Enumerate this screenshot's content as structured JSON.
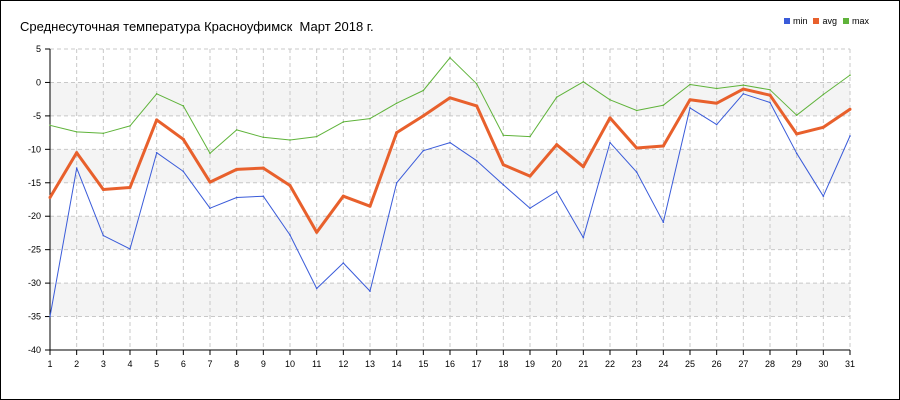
{
  "chart_data": {
    "type": "line",
    "title": "Среднесуточная температура Красноуфимск  Март 2018 г.",
    "xlabel": "",
    "ylabel": "",
    "x": [
      1,
      2,
      3,
      4,
      5,
      6,
      7,
      8,
      9,
      10,
      11,
      12,
      13,
      14,
      15,
      16,
      17,
      18,
      19,
      20,
      21,
      22,
      23,
      24,
      25,
      26,
      27,
      28,
      29,
      30,
      31
    ],
    "ylim": [
      -40,
      5
    ],
    "yticks": [
      5,
      0,
      -5,
      -10,
      -15,
      -20,
      -25,
      -30,
      -35,
      -40
    ],
    "grid": true,
    "legend_position": "top-right",
    "series": [
      {
        "name": "min",
        "color": "#3a5bd9",
        "values": [
          -35,
          -12.8,
          -22.9,
          -24.9,
          -10.5,
          -13.3,
          -18.8,
          -17.2,
          -17,
          -22.8,
          -30.8,
          -27,
          -31.2,
          -15,
          -10.2,
          -9,
          -11.7,
          -15.3,
          -18.8,
          -16.3,
          -23.2,
          -9,
          -13.4,
          -20.9,
          -3.8,
          -6.3,
          -1.7,
          -3,
          -10.6,
          -17,
          -8
        ]
      },
      {
        "name": "avg",
        "color": "#e8602c",
        "values": [
          -17.2,
          -10.5,
          -16,
          -15.7,
          -5.6,
          -8.5,
          -14.9,
          -13,
          -12.8,
          -15.4,
          -22.4,
          -17,
          -18.5,
          -7.5,
          -5,
          -2.3,
          -3.5,
          -12.3,
          -14,
          -9.3,
          -12.6,
          -5.3,
          -9.8,
          -9.5,
          -2.6,
          -3.1,
          -1,
          -1.9,
          -7.7,
          -6.7,
          -4
        ]
      },
      {
        "name": "max",
        "color": "#5fb33a",
        "values": [
          -6.4,
          -7.4,
          -7.6,
          -6.5,
          -1.7,
          -3.5,
          -10.6,
          -7.1,
          -8.2,
          -8.6,
          -8.1,
          -5.9,
          -5.4,
          -3.1,
          -1.2,
          3.7,
          -0.2,
          -7.9,
          -8.1,
          -2.2,
          0.1,
          -2.6,
          -4.2,
          -3.4,
          -0.3,
          -0.9,
          -0.4,
          -1.1,
          -4.9,
          -1.8,
          1.1
        ]
      }
    ]
  }
}
